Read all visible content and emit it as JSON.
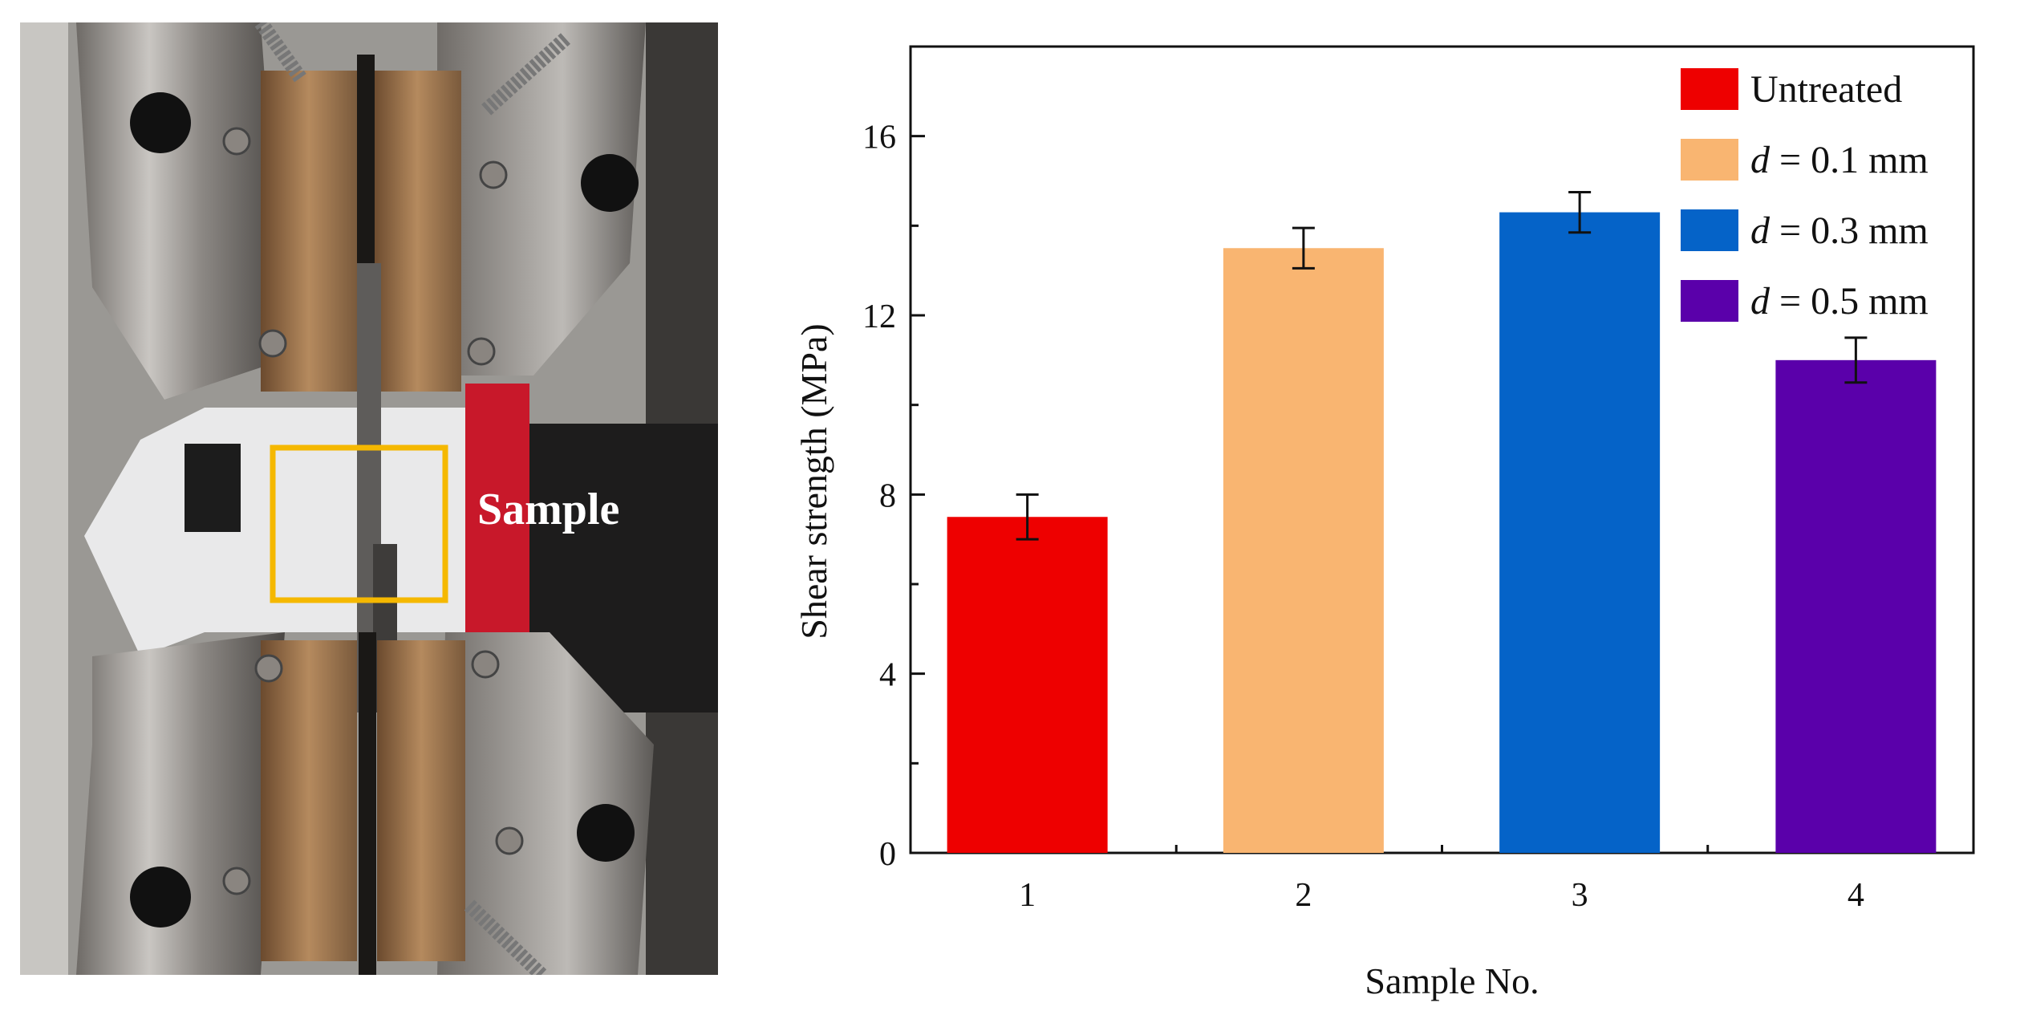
{
  "photo": {
    "annotation": "Sample",
    "box_color": "#f5b800"
  },
  "chart_data": {
    "type": "bar",
    "categories": [
      "1",
      "2",
      "3",
      "4"
    ],
    "values": [
      7.5,
      13.5,
      14.3,
      11.0
    ],
    "errors": [
      0.5,
      0.45,
      0.45,
      0.5
    ],
    "colors": [
      "#ee0000",
      "#f9b571",
      "#0563c8",
      "#5a00aa"
    ],
    "legend": [
      {
        "label": "Untreated",
        "italic_prefix": "",
        "color": "#ee0000"
      },
      {
        "label": " = 0.1 mm",
        "italic_prefix": "d",
        "color": "#f9b571"
      },
      {
        "label": " = 0.3 mm",
        "italic_prefix": "d",
        "color": "#0563c8"
      },
      {
        "label": " = 0.5 mm",
        "italic_prefix": "d",
        "color": "#5a00aa"
      }
    ],
    "legend_position": "top-right",
    "xlabel": "Sample No.",
    "ylabel": "Shear strength (MPa)",
    "ylim": [
      0,
      18
    ],
    "yticks": [
      0,
      4,
      8,
      12,
      16
    ],
    "grid": false
  }
}
